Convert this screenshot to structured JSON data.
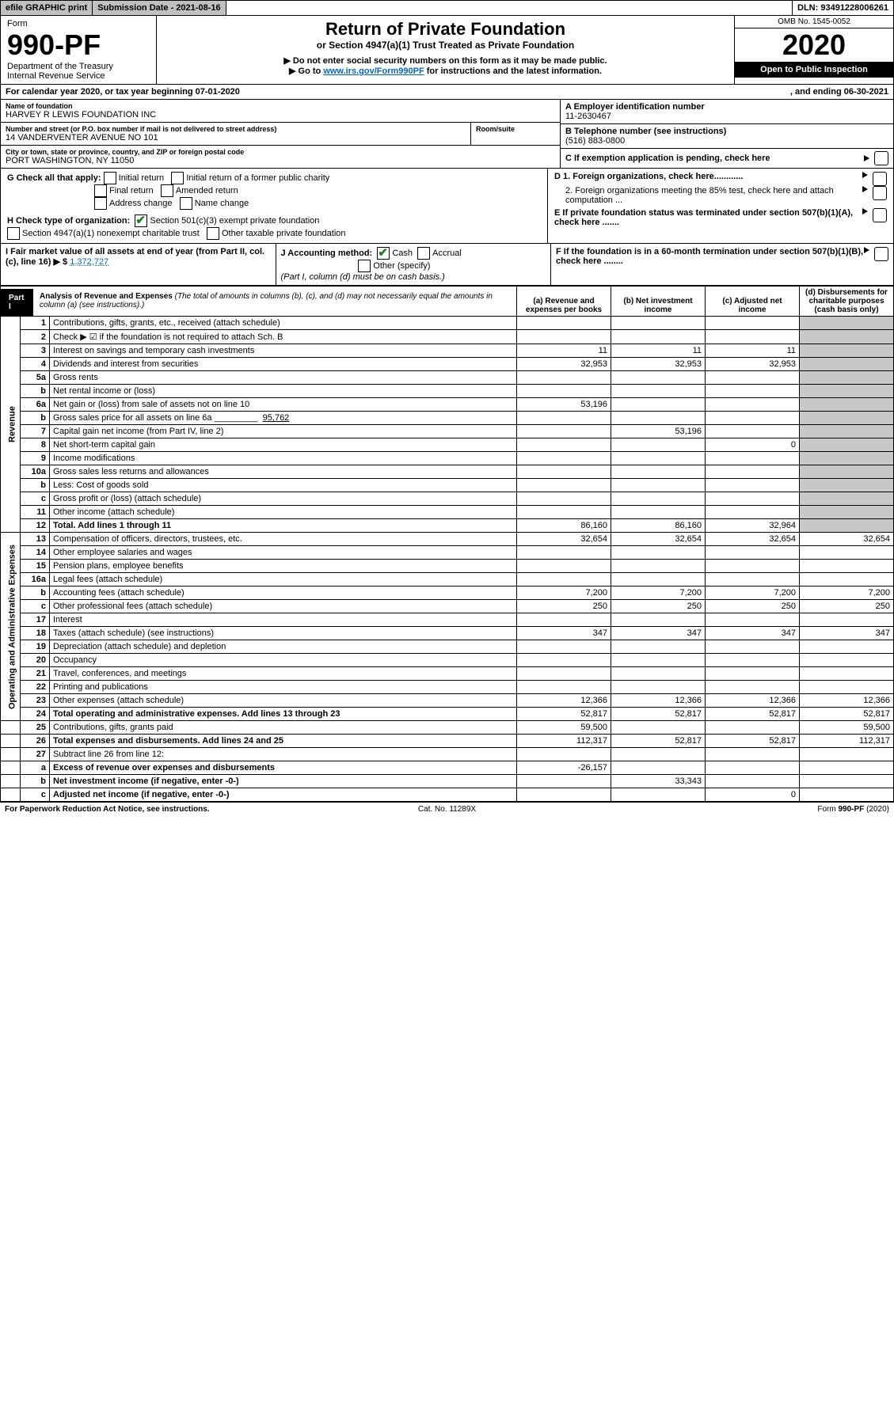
{
  "topbar": {
    "efile": "efile GRAPHIC print",
    "subdate_label": "Submission Date - 2021-08-16",
    "dln": "DLN: 93491228006261"
  },
  "header": {
    "form": "Form",
    "formno": "990-PF",
    "dept": "Department of the Treasury",
    "irs": "Internal Revenue Service",
    "title": "Return of Private Foundation",
    "sub": "or Section 4947(a)(1) Trust Treated as Private Foundation",
    "note1": "▶ Do not enter social security numbers on this form as it may be made public.",
    "note2_a": "▶ Go to ",
    "note2_link": "www.irs.gov/Form990PF",
    "note2_b": " for instructions and the latest information.",
    "omb": "OMB No. 1545-0052",
    "year": "2020",
    "pub": "Open to Public Inspection"
  },
  "cy": {
    "text": "For calendar year 2020, or tax year beginning 07-01-2020",
    "ending": ", and ending 06-30-2021"
  },
  "entity": {
    "name_lbl": "Name of foundation",
    "name": "HARVEY R LEWIS FOUNDATION INC",
    "addr_lbl": "Number and street (or P.O. box number if mail is not delivered to street address)",
    "addr": "14 VANDERVENTER AVENUE NO 101",
    "room_lbl": "Room/suite",
    "room": "",
    "city_lbl": "City or town, state or province, country, and ZIP or foreign postal code",
    "city": "PORT WASHINGTON, NY  11050",
    "A_lbl": "A Employer identification number",
    "A": "11-2630467",
    "B_lbl": "B Telephone number (see instructions)",
    "B": "(516) 883-0800",
    "C": "C  If exemption application is pending, check here"
  },
  "G": {
    "lbl": "G Check all that apply:",
    "initial": "Initial return",
    "initial_pub": "Initial return of a former public charity",
    "final": "Final return",
    "amended": "Amended return",
    "addr": "Address change",
    "name": "Name change"
  },
  "D": {
    "d1": "D 1. Foreign organizations, check here............",
    "d2": "2. Foreign organizations meeting the 85% test, check here and attach computation ...",
    "E": "E  If private foundation status was terminated under section 507(b)(1)(A), check here .......",
    "F": "F  If the foundation is in a 60-month termination under section 507(b)(1)(B), check here ........"
  },
  "H": {
    "lbl": "H Check type of organization:",
    "s501": "Section 501(c)(3) exempt private foundation",
    "s4947": "Section 4947(a)(1) nonexempt charitable trust",
    "other": "Other taxable private foundation"
  },
  "I": {
    "lbl": "I Fair market value of all assets at end of year (from Part II, col. (c), line 16) ▶ $",
    "val": "1,372,727"
  },
  "J": {
    "lbl": "J Accounting method:",
    "cash": "Cash",
    "acc": "Accrual",
    "oth": "Other (specify)",
    "foot": "(Part I, column (d) must be on cash basis.)"
  },
  "part1": {
    "tag": "Part I",
    "title": "Analysis of Revenue and Expenses",
    "sub": " (The total of amounts in columns (b), (c), and (d) may not necessarily equal the amounts in column (a) (see instructions).)",
    "cols": {
      "a": "(a) Revenue and expenses per books",
      "b": "(b) Net investment income",
      "c": "(c) Adjusted net income",
      "d": "(d) Disbursements for charitable purposes (cash basis only)"
    }
  },
  "sidelabels": {
    "rev": "Revenue",
    "exp": "Operating and Administrative Expenses"
  },
  "rows": [
    {
      "n": "1",
      "d": "Contributions, gifts, grants, etc., received (attach schedule)"
    },
    {
      "n": "2",
      "d": "Check ▶ ☑ if the foundation is not required to attach Sch. B"
    },
    {
      "n": "3",
      "d": "Interest on savings and temporary cash investments",
      "a": "11",
      "b": "11",
      "c": "11"
    },
    {
      "n": "4",
      "d": "Dividends and interest from securities",
      "a": "32,953",
      "b": "32,953",
      "c": "32,953"
    },
    {
      "n": "5a",
      "d": "Gross rents"
    },
    {
      "n": "b",
      "d": "Net rental income or (loss)"
    },
    {
      "n": "6a",
      "d": "Net gain or (loss) from sale of assets not on line 10",
      "a": "53,196"
    },
    {
      "n": "b",
      "d": "Gross sales price for all assets on line 6a _________",
      "extra": "95,762"
    },
    {
      "n": "7",
      "d": "Capital gain net income (from Part IV, line 2)",
      "b": "53,196"
    },
    {
      "n": "8",
      "d": "Net short-term capital gain",
      "c": "0"
    },
    {
      "n": "9",
      "d": "Income modifications"
    },
    {
      "n": "10a",
      "d": "Gross sales less returns and allowances"
    },
    {
      "n": "b",
      "d": "Less: Cost of goods sold"
    },
    {
      "n": "c",
      "d": "Gross profit or (loss) (attach schedule)"
    },
    {
      "n": "11",
      "d": "Other income (attach schedule)"
    },
    {
      "n": "12",
      "d": "Total. Add lines 1 through 11",
      "a": "86,160",
      "b": "86,160",
      "c": "32,964",
      "bold": true
    },
    {
      "n": "13",
      "d": "Compensation of officers, directors, trustees, etc.",
      "a": "32,654",
      "b": "32,654",
      "c": "32,654",
      "dd": "32,654"
    },
    {
      "n": "14",
      "d": "Other employee salaries and wages"
    },
    {
      "n": "15",
      "d": "Pension plans, employee benefits"
    },
    {
      "n": "16a",
      "d": "Legal fees (attach schedule)"
    },
    {
      "n": "b",
      "d": "Accounting fees (attach schedule)",
      "a": "7,200",
      "b": "7,200",
      "c": "7,200",
      "dd": "7,200"
    },
    {
      "n": "c",
      "d": "Other professional fees (attach schedule)",
      "a": "250",
      "b": "250",
      "c": "250",
      "dd": "250"
    },
    {
      "n": "17",
      "d": "Interest"
    },
    {
      "n": "18",
      "d": "Taxes (attach schedule) (see instructions)",
      "a": "347",
      "b": "347",
      "c": "347",
      "dd": "347"
    },
    {
      "n": "19",
      "d": "Depreciation (attach schedule) and depletion"
    },
    {
      "n": "20",
      "d": "Occupancy"
    },
    {
      "n": "21",
      "d": "Travel, conferences, and meetings"
    },
    {
      "n": "22",
      "d": "Printing and publications"
    },
    {
      "n": "23",
      "d": "Other expenses (attach schedule)",
      "a": "12,366",
      "b": "12,366",
      "c": "12,366",
      "dd": "12,366"
    },
    {
      "n": "24",
      "d": "Total operating and administrative expenses. Add lines 13 through 23",
      "a": "52,817",
      "b": "52,817",
      "c": "52,817",
      "dd": "52,817",
      "bold": true
    },
    {
      "n": "25",
      "d": "Contributions, gifts, grants paid",
      "a": "59,500",
      "dd": "59,500"
    },
    {
      "n": "26",
      "d": "Total expenses and disbursements. Add lines 24 and 25",
      "a": "112,317",
      "b": "52,817",
      "c": "52,817",
      "dd": "112,317",
      "bold": true
    },
    {
      "n": "27",
      "d": "Subtract line 26 from line 12:"
    },
    {
      "n": "a",
      "d": "Excess of revenue over expenses and disbursements",
      "a": "-26,157",
      "bold": true
    },
    {
      "n": "b",
      "d": "Net investment income (if negative, enter -0-)",
      "b": "33,343",
      "bold": true
    },
    {
      "n": "c",
      "d": "Adjusted net income (if negative, enter -0-)",
      "c": "0",
      "bold": true
    }
  ],
  "footer": {
    "l": "For Paperwork Reduction Act Notice, see instructions.",
    "c": "Cat. No. 11289X",
    "r": "Form 990-PF (2020)"
  }
}
